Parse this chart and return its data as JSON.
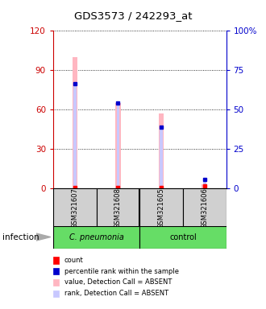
{
  "title": "GDS3573 / 242293_at",
  "samples": [
    "GSM321607",
    "GSM321608",
    "GSM321605",
    "GSM321606"
  ],
  "bar_colors_absent": "#FFB6C1",
  "rank_absent_color": "#C8C8FF",
  "count_color": "#FF0000",
  "rank_color": "#0000CC",
  "values_absent": [
    100,
    65,
    57,
    3
  ],
  "ranks_absent": [
    80,
    65,
    47,
    7
  ],
  "counts": [
    1,
    1,
    1,
    2
  ],
  "percentile_ranks": [
    80,
    65,
    47,
    7
  ],
  "ylim_left": [
    0,
    120
  ],
  "ylim_right": [
    0,
    100
  ],
  "yticks_left": [
    0,
    30,
    60,
    90,
    120
  ],
  "yticks_right": [
    0,
    25,
    50,
    75,
    100
  ],
  "ytick_labels_right": [
    "0",
    "25",
    "50",
    "75",
    "100%"
  ],
  "left_axis_color": "#CC0000",
  "right_axis_color": "#0000CC",
  "group_label": "infection",
  "cpneumonia_color": "#66DD66",
  "control_color": "#66DD66",
  "sample_box_color": "#D0D0D0",
  "legend": [
    {
      "label": "count",
      "color": "#FF0000"
    },
    {
      "label": "percentile rank within the sample",
      "color": "#0000CC"
    },
    {
      "label": "value, Detection Call = ABSENT",
      "color": "#FFB6C1"
    },
    {
      "label": "rank, Detection Call = ABSENT",
      "color": "#C8C8FF"
    }
  ]
}
